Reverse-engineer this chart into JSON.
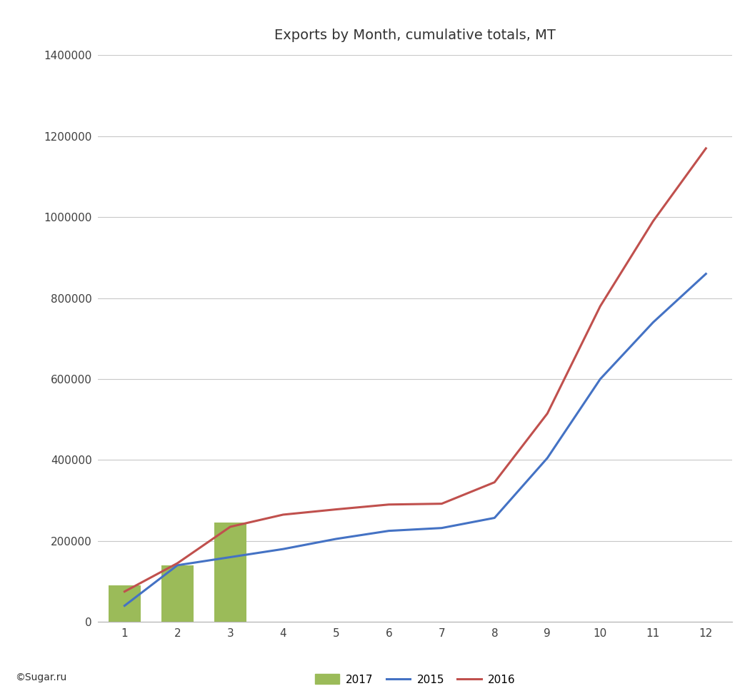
{
  "title": "Exports by Month, cumulative totals, MT",
  "months_2015": [
    1,
    2,
    3,
    4,
    5,
    6,
    7,
    8,
    9,
    10,
    11,
    12
  ],
  "months_2016": [
    1,
    2,
    3,
    4,
    5,
    6,
    7,
    8,
    9,
    10,
    11,
    12
  ],
  "months_2017": [
    1,
    2,
    3
  ],
  "values_2015": [
    40000,
    140000,
    160000,
    180000,
    205000,
    225000,
    232000,
    257000,
    405000,
    600000,
    740000,
    860000
  ],
  "values_2016": [
    75000,
    145000,
    235000,
    265000,
    278000,
    290000,
    292000,
    345000,
    515000,
    780000,
    990000,
    1170000
  ],
  "values_2017": [
    90000,
    140000,
    245000
  ],
  "color_2015": "#4472c4",
  "color_2016": "#c0504d",
  "color_2017": "#9bbb59",
  "ylim": [
    0,
    1400000
  ],
  "yticks": [
    0,
    200000,
    400000,
    600000,
    800000,
    1000000,
    1200000,
    1400000
  ],
  "xticks": [
    1,
    2,
    3,
    4,
    5,
    6,
    7,
    8,
    9,
    10,
    11,
    12
  ],
  "grid_color": "#c8c8c8",
  "background_color": "#ffffff",
  "bar_width": 0.6,
  "copyright_text": "©Sugar.ru",
  "legend_labels": [
    "2017",
    "2015",
    "2016"
  ],
  "title_fontsize": 14,
  "tick_fontsize": 11
}
